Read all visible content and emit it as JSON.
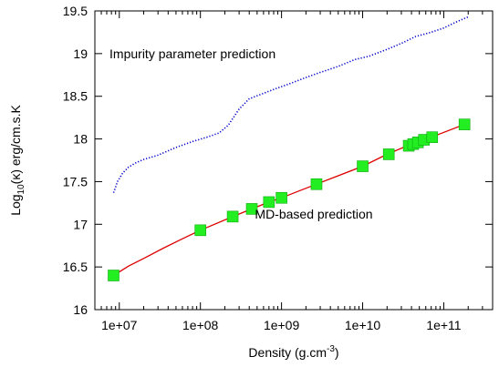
{
  "chart_data": {
    "type": "line",
    "xlabel": "Density (g.cm",
    "xlabel_sup": "-3",
    "xlabel_end": ")",
    "ylabel": "Log",
    "ylabel_sub": "10",
    "ylabel_end": "(κ) erg/cm.s.K",
    "x_scale": "log",
    "xlim": [
      5000000,
      400000000000
    ],
    "ylim": [
      16,
      19.5
    ],
    "x_ticks": [
      10000000,
      100000000,
      1000000000,
      10000000000,
      100000000000
    ],
    "x_tick_labels": [
      "1e+07",
      "1e+08",
      "1e+09",
      "1e+10",
      "1e+11"
    ],
    "y_ticks": [
      16,
      16.5,
      17,
      17.5,
      18,
      18.5,
      19,
      19.5
    ],
    "y_tick_labels": [
      "16",
      "16.5",
      "17",
      "17.5",
      "18",
      "18.5",
      "19",
      "19.5"
    ],
    "grid": false,
    "annotations": [
      {
        "text": "Impurity parameter prediction",
        "x": 80000000,
        "y": 19.0
      },
      {
        "text": "MD-based prediction",
        "x": 2500000000,
        "y": 17.12
      }
    ],
    "series": [
      {
        "kind": "dotted-line",
        "color": "#0000cc",
        "x": [
          8500000,
          9500000,
          11000000,
          13000000,
          16000000,
          20000000,
          30000000,
          50000000,
          80000000,
          120000000,
          170000000,
          220000000,
          300000000,
          400000000,
          550000000,
          800000000,
          1200000000,
          2000000000,
          3000000000,
          5000000000,
          8000000000,
          12000000000,
          20000000000,
          30000000000,
          45000000000,
          70000000000,
          100000000000,
          150000000000,
          200000000000
        ],
        "values": [
          17.37,
          17.5,
          17.6,
          17.67,
          17.72,
          17.76,
          17.81,
          17.9,
          17.97,
          18.02,
          18.07,
          18.16,
          18.35,
          18.47,
          18.52,
          18.58,
          18.64,
          18.72,
          18.78,
          18.85,
          18.93,
          18.97,
          19.05,
          19.12,
          19.2,
          19.25,
          19.3,
          19.38,
          19.43
        ]
      },
      {
        "kind": "line",
        "color": "#dd0000",
        "x": [
          8500000,
          13000000,
          20000000,
          35000000,
          60000000,
          100000000,
          250000000,
          430000000,
          700000000,
          1000000000,
          2700000000,
          10000000000,
          20000000000,
          40000000000,
          70000000000,
          180000000000
        ],
        "values": [
          16.4,
          16.51,
          16.6,
          16.72,
          16.83,
          16.93,
          17.09,
          17.18,
          17.26,
          17.31,
          17.47,
          17.68,
          17.82,
          17.94,
          18.02,
          18.17
        ]
      },
      {
        "kind": "markers",
        "color": "#22ee22",
        "x": [
          8500000,
          100000000,
          250000000,
          430000000,
          700000000,
          1000000000,
          2700000000,
          10000000000,
          21000000000,
          37000000000,
          42000000000,
          48000000000,
          57000000000,
          72000000000,
          180000000000
        ],
        "values": [
          16.4,
          16.93,
          17.09,
          17.18,
          17.26,
          17.31,
          17.47,
          17.68,
          17.82,
          17.92,
          17.94,
          17.96,
          17.99,
          18.02,
          18.17
        ]
      }
    ]
  }
}
